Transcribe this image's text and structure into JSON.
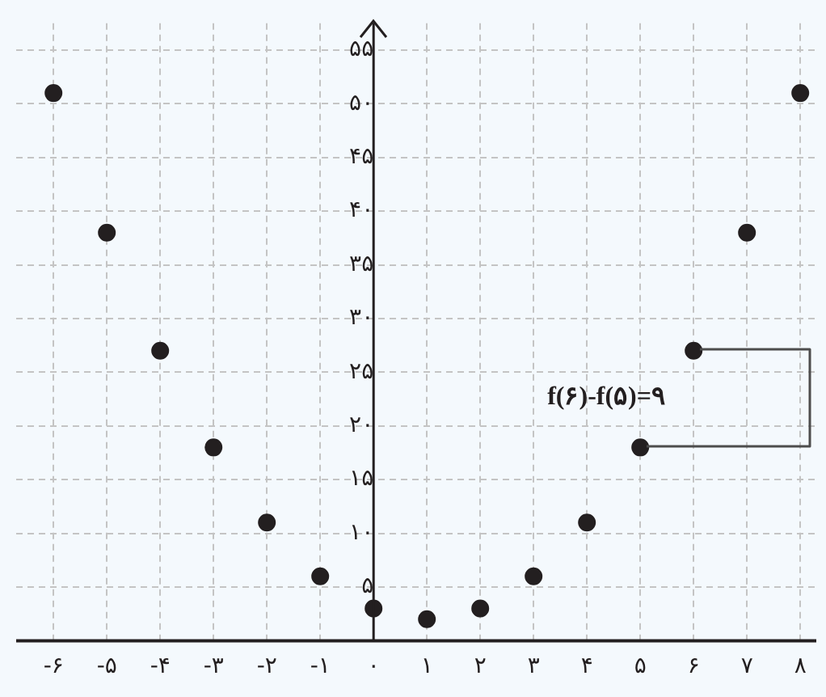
{
  "chart_data": {
    "type": "scatter",
    "x": [
      -6,
      -5,
      -4,
      -3,
      -2,
      -1,
      0,
      1,
      2,
      3,
      4,
      5,
      6,
      7,
      8
    ],
    "series": [
      {
        "color": "#231f20",
        "values": [
          51,
          38,
          27,
          18,
          11,
          6,
          3,
          2,
          3,
          6,
          11,
          18,
          27,
          38,
          51
        ]
      }
    ],
    "xlim": [
      -6.7,
      8.3
    ],
    "ylim": [
      0,
      57.5
    ],
    "xticks": [
      {
        "value": -6,
        "label": "-۶"
      },
      {
        "value": -5,
        "label": "-۵"
      },
      {
        "value": -4,
        "label": "-۴"
      },
      {
        "value": -3,
        "label": "-۳"
      },
      {
        "value": -2,
        "label": "-۲"
      },
      {
        "value": -1,
        "label": "-۱"
      },
      {
        "value": 0,
        "label": "۰"
      },
      {
        "value": 1,
        "label": "۱"
      },
      {
        "value": 2,
        "label": "۲"
      },
      {
        "value": 3,
        "label": "۳"
      },
      {
        "value": 4,
        "label": "۴"
      },
      {
        "value": 5,
        "label": "۵"
      },
      {
        "value": 6,
        "label": "۶"
      },
      {
        "value": 7,
        "label": "۷"
      },
      {
        "value": 8,
        "label": "۸"
      }
    ],
    "yticks": [
      {
        "value": 5,
        "label": "۵"
      },
      {
        "value": 10,
        "label": "۱۰"
      },
      {
        "value": 15,
        "label": "۱۵"
      },
      {
        "value": 20,
        "label": "۲۰"
      },
      {
        "value": 25,
        "label": "۲۵"
      },
      {
        "value": 30,
        "label": "۳۰"
      },
      {
        "value": 35,
        "label": "۳۵"
      },
      {
        "value": 40,
        "label": "۴۰"
      },
      {
        "value": 45,
        "label": "۴۵"
      },
      {
        "value": 50,
        "label": "۵۰"
      },
      {
        "value": 55,
        "label": "۵۵"
      }
    ],
    "annotations": [
      "f(۶)-f(۵)=۹"
    ],
    "grid": true,
    "legend": false,
    "marker": "circle"
  }
}
